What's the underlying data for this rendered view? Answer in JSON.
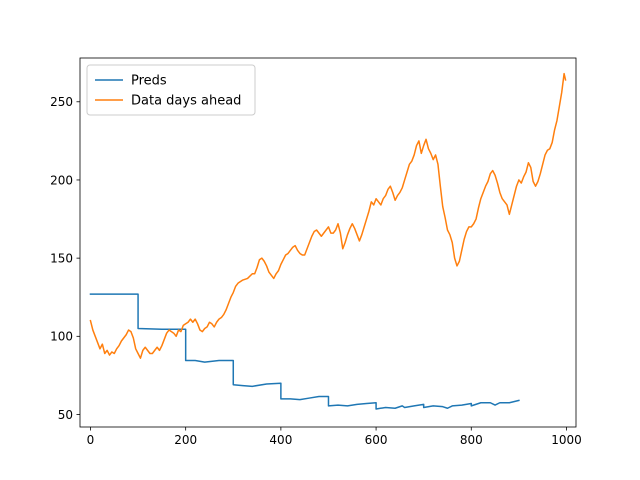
{
  "chart_data": {
    "type": "line",
    "title": "",
    "xlabel": "",
    "ylabel": "",
    "xlim": [
      -22,
      1020
    ],
    "ylim": [
      42,
      278
    ],
    "grid": false,
    "legend_position": "top-left",
    "x_ticks": [
      0,
      200,
      400,
      600,
      800,
      1000
    ],
    "y_ticks": [
      50,
      100,
      150,
      200,
      250
    ],
    "series": [
      {
        "name": "Preds",
        "color": "#1f77b4",
        "points": [
          [
            0,
            127
          ],
          [
            100,
            127
          ],
          [
            100,
            105
          ],
          [
            150,
            104.5
          ],
          [
            200,
            104.5
          ],
          [
            200,
            84.5
          ],
          [
            220,
            84.5
          ],
          [
            240,
            83.5
          ],
          [
            270,
            84.5
          ],
          [
            300,
            84.5
          ],
          [
            300,
            69
          ],
          [
            320,
            68.5
          ],
          [
            340,
            68
          ],
          [
            370,
            69.5
          ],
          [
            400,
            70
          ],
          [
            400,
            60
          ],
          [
            420,
            60
          ],
          [
            440,
            59.5
          ],
          [
            460,
            60.5
          ],
          [
            480,
            61.5
          ],
          [
            500,
            61.5
          ],
          [
            500,
            55.5
          ],
          [
            520,
            56
          ],
          [
            540,
            55.5
          ],
          [
            560,
            56.5
          ],
          [
            580,
            57
          ],
          [
            600,
            57.5
          ],
          [
            600,
            53.5
          ],
          [
            620,
            54.5
          ],
          [
            640,
            54
          ],
          [
            655,
            55.5
          ],
          [
            660,
            54.5
          ],
          [
            680,
            55.5
          ],
          [
            700,
            56.5
          ],
          [
            700,
            54.5
          ],
          [
            720,
            55.5
          ],
          [
            740,
            55
          ],
          [
            750,
            54
          ],
          [
            760,
            55.5
          ],
          [
            780,
            56
          ],
          [
            800,
            57
          ],
          [
            800,
            55.5
          ],
          [
            820,
            57.5
          ],
          [
            840,
            57.5
          ],
          [
            850,
            56
          ],
          [
            860,
            57.5
          ],
          [
            880,
            57.5
          ],
          [
            900,
            59
          ]
        ]
      },
      {
        "name": "Data days ahead",
        "color": "#ff7f0e",
        "points": [
          [
            0,
            110
          ],
          [
            5,
            104
          ],
          [
            10,
            100
          ],
          [
            15,
            96
          ],
          [
            20,
            92
          ],
          [
            25,
            95
          ],
          [
            30,
            89
          ],
          [
            35,
            91
          ],
          [
            40,
            88
          ],
          [
            45,
            90
          ],
          [
            50,
            89
          ],
          [
            55,
            92
          ],
          [
            60,
            94
          ],
          [
            65,
            97
          ],
          [
            70,
            99
          ],
          [
            75,
            101
          ],
          [
            80,
            104
          ],
          [
            85,
            103
          ],
          [
            90,
            99
          ],
          [
            95,
            92
          ],
          [
            100,
            89
          ],
          [
            105,
            86
          ],
          [
            110,
            91
          ],
          [
            115,
            93
          ],
          [
            120,
            91
          ],
          [
            125,
            89
          ],
          [
            130,
            89
          ],
          [
            135,
            91
          ],
          [
            140,
            93
          ],
          [
            145,
            91
          ],
          [
            150,
            94
          ],
          [
            155,
            98
          ],
          [
            160,
            102
          ],
          [
            165,
            104
          ],
          [
            170,
            103
          ],
          [
            175,
            102
          ],
          [
            180,
            100
          ],
          [
            185,
            104
          ],
          [
            190,
            103
          ],
          [
            195,
            107
          ],
          [
            200,
            108
          ],
          [
            205,
            109
          ],
          [
            210,
            111
          ],
          [
            215,
            109
          ],
          [
            220,
            111
          ],
          [
            225,
            108
          ],
          [
            230,
            104
          ],
          [
            235,
            103
          ],
          [
            240,
            105
          ],
          [
            245,
            106
          ],
          [
            250,
            109
          ],
          [
            255,
            108
          ],
          [
            260,
            106
          ],
          [
            265,
            109
          ],
          [
            270,
            111
          ],
          [
            275,
            112
          ],
          [
            280,
            114
          ],
          [
            285,
            117
          ],
          [
            290,
            121
          ],
          [
            295,
            125
          ],
          [
            300,
            128
          ],
          [
            305,
            132
          ],
          [
            310,
            134
          ],
          [
            320,
            136
          ],
          [
            330,
            137
          ],
          [
            340,
            140
          ],
          [
            345,
            140
          ],
          [
            350,
            144
          ],
          [
            355,
            149
          ],
          [
            360,
            150
          ],
          [
            365,
            148
          ],
          [
            370,
            145
          ],
          [
            375,
            141
          ],
          [
            380,
            139
          ],
          [
            385,
            137
          ],
          [
            390,
            140
          ],
          [
            395,
            142
          ],
          [
            400,
            146
          ],
          [
            405,
            149
          ],
          [
            410,
            152
          ],
          [
            415,
            153
          ],
          [
            420,
            155
          ],
          [
            425,
            157
          ],
          [
            430,
            158
          ],
          [
            435,
            155
          ],
          [
            440,
            153
          ],
          [
            445,
            152
          ],
          [
            450,
            152
          ],
          [
            455,
            156
          ],
          [
            460,
            160
          ],
          [
            465,
            164
          ],
          [
            470,
            167
          ],
          [
            475,
            168
          ],
          [
            480,
            166
          ],
          [
            485,
            164
          ],
          [
            490,
            166
          ],
          [
            495,
            168
          ],
          [
            500,
            170
          ],
          [
            505,
            166
          ],
          [
            510,
            166
          ],
          [
            515,
            168
          ],
          [
            520,
            172
          ],
          [
            525,
            166
          ],
          [
            530,
            156
          ],
          [
            535,
            160
          ],
          [
            540,
            165
          ],
          [
            545,
            169
          ],
          [
            550,
            172
          ],
          [
            555,
            169
          ],
          [
            560,
            165
          ],
          [
            565,
            161
          ],
          [
            570,
            165
          ],
          [
            575,
            170
          ],
          [
            580,
            175
          ],
          [
            585,
            180
          ],
          [
            590,
            186
          ],
          [
            595,
            184
          ],
          [
            600,
            188
          ],
          [
            605,
            186
          ],
          [
            610,
            184
          ],
          [
            615,
            188
          ],
          [
            620,
            190
          ],
          [
            625,
            194
          ],
          [
            630,
            196
          ],
          [
            635,
            192
          ],
          [
            640,
            187
          ],
          [
            645,
            190
          ],
          [
            650,
            192
          ],
          [
            655,
            195
          ],
          [
            660,
            200
          ],
          [
            665,
            205
          ],
          [
            670,
            210
          ],
          [
            675,
            212
          ],
          [
            680,
            216
          ],
          [
            685,
            222
          ],
          [
            690,
            225
          ],
          [
            695,
            217
          ],
          [
            700,
            222
          ],
          [
            705,
            226
          ],
          [
            710,
            220
          ],
          [
            715,
            217
          ],
          [
            720,
            213
          ],
          [
            725,
            216
          ],
          [
            730,
            210
          ],
          [
            735,
            196
          ],
          [
            740,
            183
          ],
          [
            745,
            176
          ],
          [
            750,
            168
          ],
          [
            755,
            165
          ],
          [
            760,
            160
          ],
          [
            765,
            150
          ],
          [
            770,
            145
          ],
          [
            775,
            148
          ],
          [
            780,
            155
          ],
          [
            785,
            162
          ],
          [
            790,
            167
          ],
          [
            795,
            170
          ],
          [
            800,
            170
          ],
          [
            805,
            172
          ],
          [
            810,
            175
          ],
          [
            815,
            182
          ],
          [
            820,
            188
          ],
          [
            825,
            192
          ],
          [
            830,
            196
          ],
          [
            835,
            199
          ],
          [
            840,
            204
          ],
          [
            845,
            206
          ],
          [
            850,
            203
          ],
          [
            855,
            198
          ],
          [
            860,
            192
          ],
          [
            865,
            188
          ],
          [
            870,
            186
          ],
          [
            875,
            184
          ],
          [
            880,
            178
          ],
          [
            885,
            184
          ],
          [
            890,
            190
          ],
          [
            895,
            196
          ],
          [
            900,
            200
          ],
          [
            905,
            198
          ],
          [
            910,
            202
          ],
          [
            915,
            205
          ],
          [
            920,
            211
          ],
          [
            925,
            208
          ],
          [
            930,
            199
          ],
          [
            935,
            196
          ],
          [
            940,
            199
          ],
          [
            945,
            204
          ],
          [
            950,
            210
          ],
          [
            955,
            216
          ],
          [
            960,
            219
          ],
          [
            965,
            220
          ],
          [
            970,
            224
          ],
          [
            975,
            232
          ],
          [
            980,
            238
          ],
          [
            985,
            247
          ],
          [
            990,
            256
          ],
          [
            995,
            268
          ],
          [
            998,
            264
          ]
        ]
      }
    ]
  }
}
